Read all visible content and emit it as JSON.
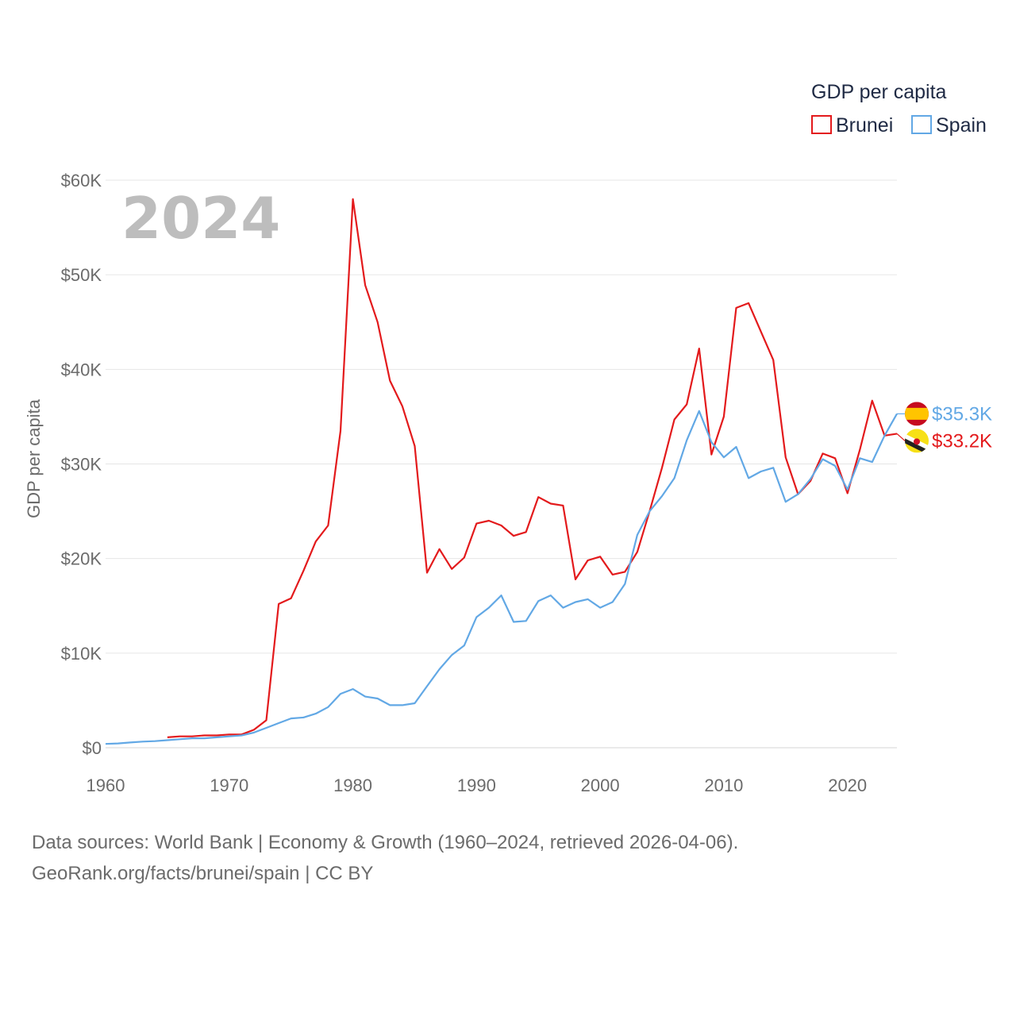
{
  "chart_data": {
    "type": "line",
    "title": "GDP per capita",
    "year_label": "2024",
    "ylabel": "GDP per capita",
    "xlabel": "",
    "xlim": [
      1960,
      2024
    ],
    "ylim": [
      0,
      60000
    ],
    "x_ticks": [
      1960,
      1970,
      1980,
      1990,
      2000,
      2010,
      2020
    ],
    "y_ticks": [
      {
        "value": 0,
        "label": "$0"
      },
      {
        "value": 10000,
        "label": "$10K"
      },
      {
        "value": 20000,
        "label": "$20K"
      },
      {
        "value": 30000,
        "label": "$30K"
      },
      {
        "value": 40000,
        "label": "$40K"
      },
      {
        "value": 50000,
        "label": "$50K"
      },
      {
        "value": 60000,
        "label": "$60K"
      }
    ],
    "grid": "horizontal",
    "legend": {
      "title": "GDP per capita",
      "position": "top-right"
    },
    "series": [
      {
        "name": "Brunei",
        "color": "#e31a1c",
        "end_label": "$33.2K",
        "flag": "brunei-flag-icon",
        "x": [
          1965,
          1966,
          1967,
          1968,
          1969,
          1970,
          1971,
          1972,
          1973,
          1974,
          1975,
          1976,
          1977,
          1978,
          1979,
          1980,
          1981,
          1982,
          1983,
          1984,
          1985,
          1986,
          1987,
          1988,
          1989,
          1990,
          1991,
          1992,
          1993,
          1994,
          1995,
          1996,
          1997,
          1998,
          1999,
          2000,
          2001,
          2002,
          2003,
          2004,
          2005,
          2006,
          2007,
          2008,
          2009,
          2010,
          2011,
          2012,
          2013,
          2014,
          2015,
          2016,
          2017,
          2018,
          2019,
          2020,
          2021,
          2022,
          2023,
          2024
        ],
        "values": [
          1100,
          1200,
          1200,
          1300,
          1300,
          1400,
          1400,
          1900,
          2900,
          15200,
          15800,
          18700,
          21800,
          23500,
          33500,
          58000,
          48900,
          45000,
          38800,
          36100,
          31900,
          18500,
          21000,
          18900,
          20100,
          23700,
          24000,
          23500,
          22400,
          22800,
          26500,
          25800,
          25600,
          17800,
          19800,
          20200,
          18300,
          18600,
          20700,
          25000,
          29600,
          34700,
          36300,
          42200,
          31000,
          35000,
          46500,
          47000,
          44000,
          41000,
          30700,
          26800,
          28200,
          31100,
          30600,
          26900,
          31500,
          36700,
          33000,
          33200
        ]
      },
      {
        "name": "Spain",
        "color": "#62a8e5",
        "end_label": "$35.3K",
        "flag": "spain-flag-icon",
        "x": [
          1960,
          1961,
          1962,
          1963,
          1964,
          1965,
          1966,
          1967,
          1968,
          1969,
          1970,
          1971,
          1972,
          1973,
          1974,
          1975,
          1976,
          1977,
          1978,
          1979,
          1980,
          1981,
          1982,
          1983,
          1984,
          1985,
          1986,
          1987,
          1988,
          1989,
          1990,
          1991,
          1992,
          1993,
          1994,
          1995,
          1996,
          1997,
          1998,
          1999,
          2000,
          2001,
          2002,
          2003,
          2004,
          2005,
          2006,
          2007,
          2008,
          2009,
          2010,
          2011,
          2012,
          2013,
          2014,
          2015,
          2016,
          2017,
          2018,
          2019,
          2020,
          2021,
          2022,
          2023,
          2024
        ],
        "values": [
          400,
          450,
          550,
          650,
          700,
          800,
          900,
          1000,
          1000,
          1100,
          1200,
          1300,
          1600,
          2100,
          2600,
          3100,
          3200,
          3600,
          4300,
          5700,
          6200,
          5400,
          5200,
          4500,
          4500,
          4700,
          6500,
          8300,
          9800,
          10800,
          13800,
          14800,
          16100,
          13300,
          13400,
          15500,
          16100,
          14800,
          15400,
          15700,
          14800,
          15400,
          17300,
          22500,
          25000,
          26600,
          28500,
          32500,
          35600,
          32300,
          30700,
          31800,
          28500,
          29200,
          29600,
          26000,
          26800,
          28400,
          30500,
          29800,
          27300,
          30600,
          30200,
          33000,
          35300
        ]
      }
    ],
    "sources_line1": "Data sources: World Bank | Economy & Growth (1960–2024, retrieved 2026-04-06).",
    "sources_line2": "GeoRank.org/facts/brunei/spain | CC BY"
  }
}
